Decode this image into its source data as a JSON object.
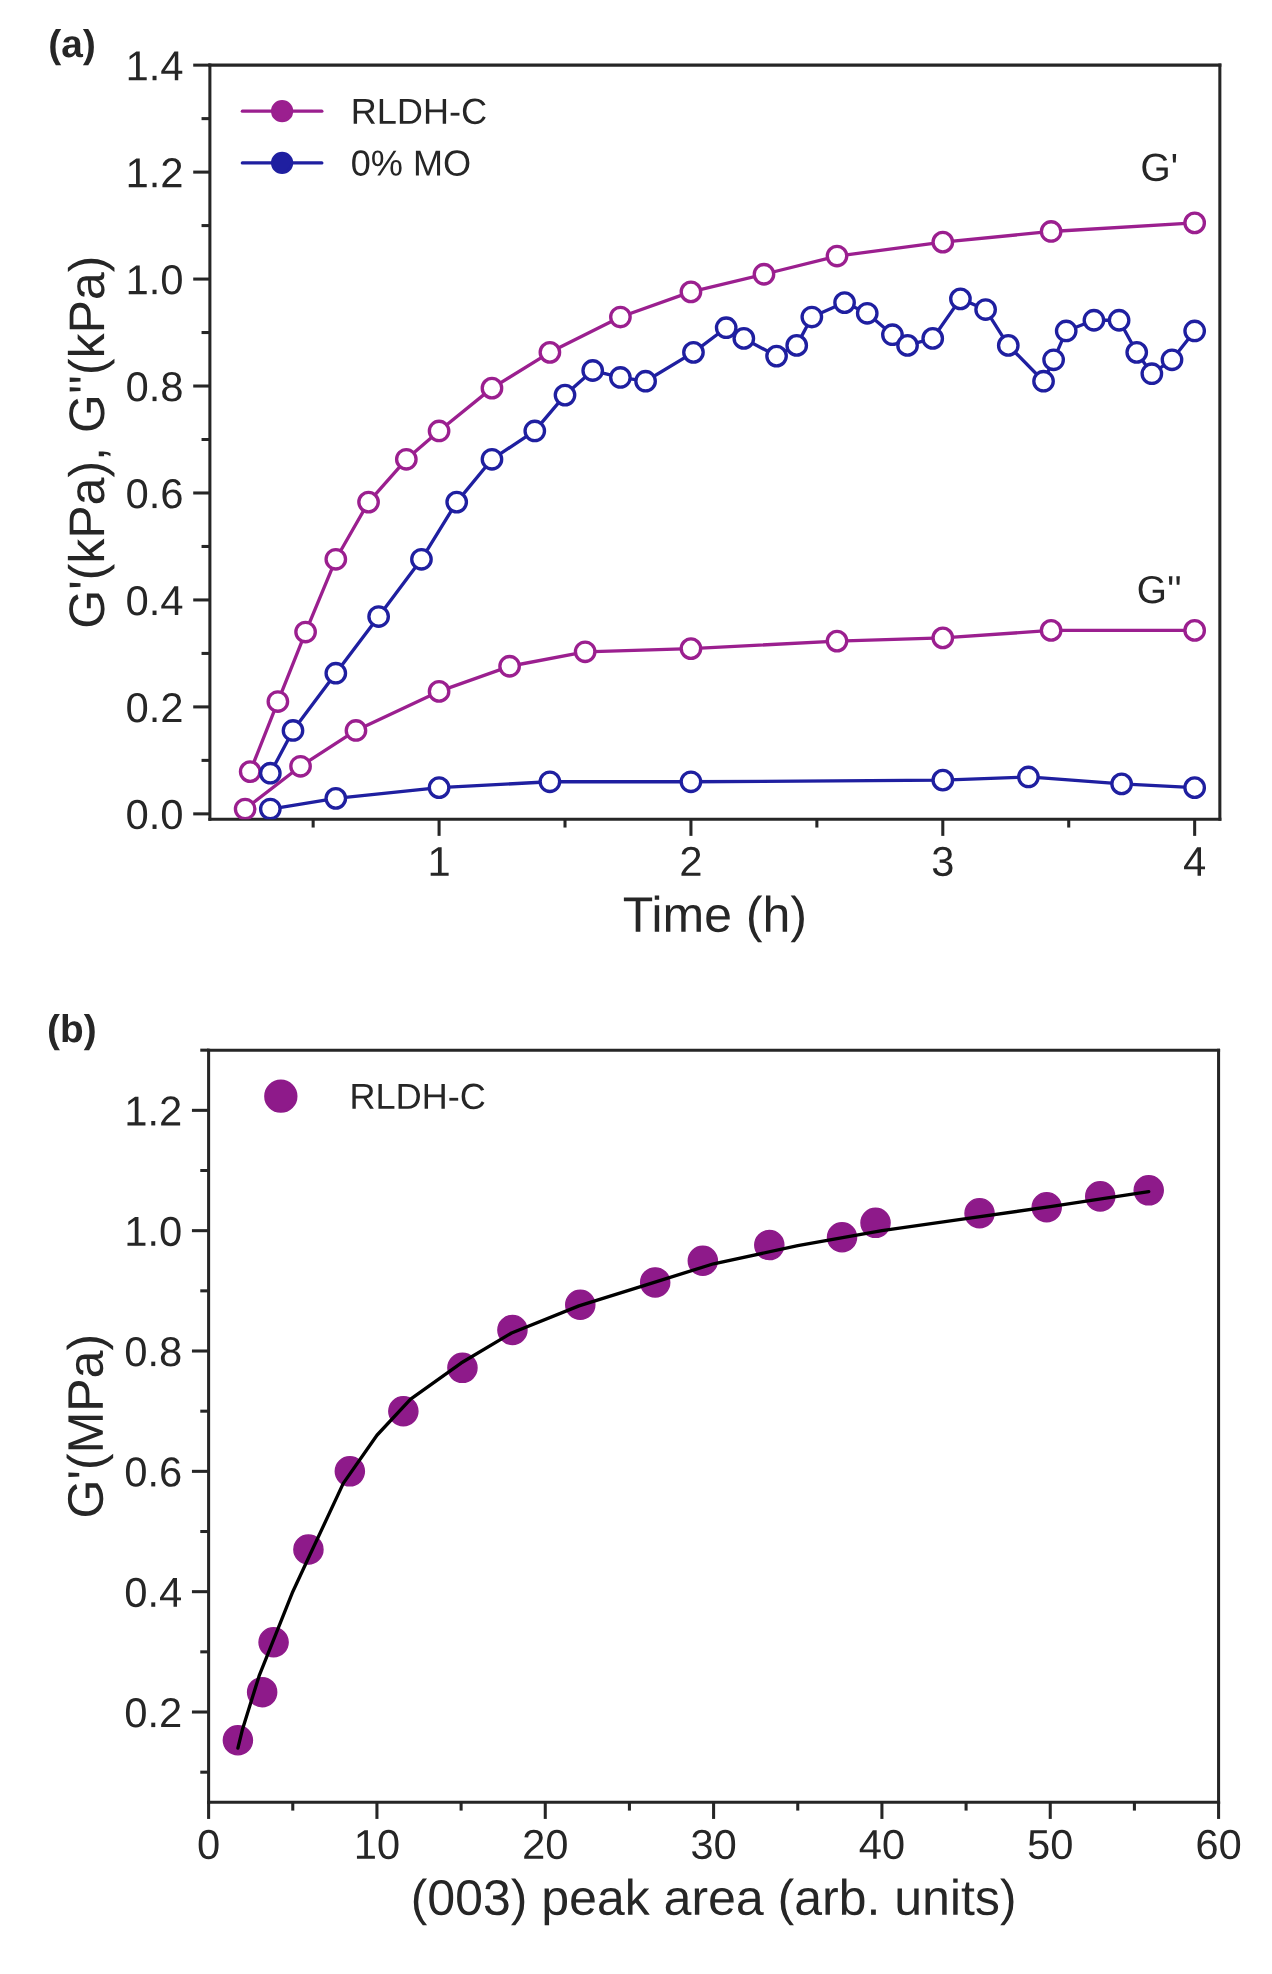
{
  "chart_data": [
    {
      "type": "line",
      "title": "(a)",
      "xlabel": "Time (h)",
      "ylabel": "G'(kPa), G''(kPa)",
      "marker": "circle",
      "legend": "top left",
      "grid": false,
      "xlim": [
        0.09,
        4.1
      ],
      "ylim": [
        -0.01,
        1.4
      ],
      "xticks": [
        1,
        2,
        3,
        4
      ],
      "yticks": [
        {
          "value": 0,
          "label": "0.0"
        },
        {
          "value": 0.2,
          "label": "0.2"
        },
        {
          "value": 0.4,
          "label": "0.4"
        },
        {
          "value": 0.6,
          "label": "0.6"
        },
        {
          "value": 0.8,
          "label": "0.8"
        },
        {
          "value": 1.0,
          "label": "1.0"
        },
        {
          "value": 1.2,
          "label": "1.2"
        },
        {
          "value": 1.4,
          "label": "1.4"
        }
      ],
      "annotations": [
        "G'",
        "G''"
      ],
      "series": [
        {
          "name": "RLDH-C",
          "color": "#9b1f8f",
          "x": [
            0.25,
            0.36,
            0.47,
            0.59,
            0.72,
            0.87,
            1.0,
            1.21,
            1.44,
            1.72,
            2.0,
            2.29,
            2.58,
            3.0,
            3.43,
            4.0
          ],
          "values": [
            0.079,
            0.21,
            0.34,
            0.476,
            0.583,
            0.663,
            0.716,
            0.796,
            0.863,
            0.929,
            0.976,
            1.009,
            1.043,
            1.069,
            1.089,
            1.105
          ]
        },
        {
          "name": "0% MO",
          "color": "#1f1fa0",
          "x": [
            0.33,
            0.42,
            0.59,
            0.76,
            0.93,
            1.07,
            1.21,
            1.38,
            1.5,
            1.61,
            1.72,
            1.82,
            2.01,
            2.14,
            2.21,
            2.34,
            2.42,
            2.48,
            2.61,
            2.7,
            2.8,
            2.86,
            2.96,
            3.07,
            3.17,
            3.26,
            3.4,
            3.44,
            3.49,
            3.6,
            3.7,
            3.77,
            3.83,
            3.91,
            4.0
          ],
          "values": [
            0.076,
            0.156,
            0.263,
            0.369,
            0.476,
            0.583,
            0.663,
            0.716,
            0.783,
            0.829,
            0.816,
            0.809,
            0.863,
            0.909,
            0.889,
            0.856,
            0.876,
            0.929,
            0.956,
            0.936,
            0.896,
            0.876,
            0.889,
            0.963,
            0.943,
            0.876,
            0.809,
            0.849,
            0.903,
            0.923,
            0.923,
            0.863,
            0.823,
            0.849,
            0.903
          ]
        },
        {
          "color": "#9b1f8f",
          "x": [
            0.23,
            0.45,
            0.67,
            1.0,
            1.28,
            1.58,
            2.0,
            2.58,
            3.0,
            3.43,
            4.0
          ],
          "values": [
            0.009,
            0.089,
            0.156,
            0.229,
            0.276,
            0.303,
            0.309,
            0.323,
            0.329,
            0.343,
            0.343
          ]
        },
        {
          "color": "#1f1fa0",
          "x": [
            0.33,
            0.59,
            1.0,
            1.44,
            2.0,
            3.0,
            3.34,
            3.71,
            4.0
          ],
          "values": [
            0.009,
            0.029,
            0.049,
            0.06,
            0.06,
            0.063,
            0.069,
            0.056,
            0.049
          ]
        }
      ]
    },
    {
      "type": "scatter",
      "title": "(b)",
      "xlabel": "(003) peak area (arb. units)",
      "ylabel": "G'(MPa)",
      "marker": "circle",
      "legend": "top left",
      "grid": false,
      "xlim": [
        0,
        60
      ],
      "ylim": [
        0.05,
        1.3
      ],
      "xticks": [
        0,
        10,
        20,
        30,
        40,
        50,
        60
      ],
      "yticks": [
        {
          "value": 0.2,
          "label": "0.2"
        },
        {
          "value": 0.4,
          "label": "0.4"
        },
        {
          "value": 0.6,
          "label": "0.6"
        },
        {
          "value": 0.8,
          "label": "0.8"
        },
        {
          "value": 1.0,
          "label": "1.0"
        },
        {
          "value": 1.2,
          "label": "1.2"
        }
      ],
      "series": [
        {
          "name": "RLDH-C",
          "color": "#8e1a8a",
          "x": [
            1.74,
            3.18,
            3.86,
            5.93,
            8.39,
            11.57,
            15.08,
            18.05,
            22.08,
            26.53,
            29.36,
            33.31,
            37.63,
            39.62,
            45.8,
            49.79,
            52.97,
            55.85
          ],
          "values": [
            0.153,
            0.233,
            0.316,
            0.47,
            0.6,
            0.7,
            0.772,
            0.835,
            0.877,
            0.914,
            0.95,
            0.976,
            0.989,
            1.013,
            1.029,
            1.039,
            1.057,
            1.067
          ]
        },
        {
          "type": "line",
          "marker": "none",
          "color": "#000000",
          "x": [
            1.74,
            2,
            3,
            4,
            5,
            6,
            8,
            10,
            12,
            15,
            18,
            22,
            26,
            30,
            35,
            40,
            45,
            50,
            55.85
          ],
          "values": [
            0.14,
            0.17,
            0.26,
            0.33,
            0.4,
            0.46,
            0.58,
            0.66,
            0.72,
            0.78,
            0.83,
            0.875,
            0.91,
            0.945,
            0.975,
            1.0,
            1.02,
            1.04,
            1.065
          ]
        }
      ]
    }
  ]
}
